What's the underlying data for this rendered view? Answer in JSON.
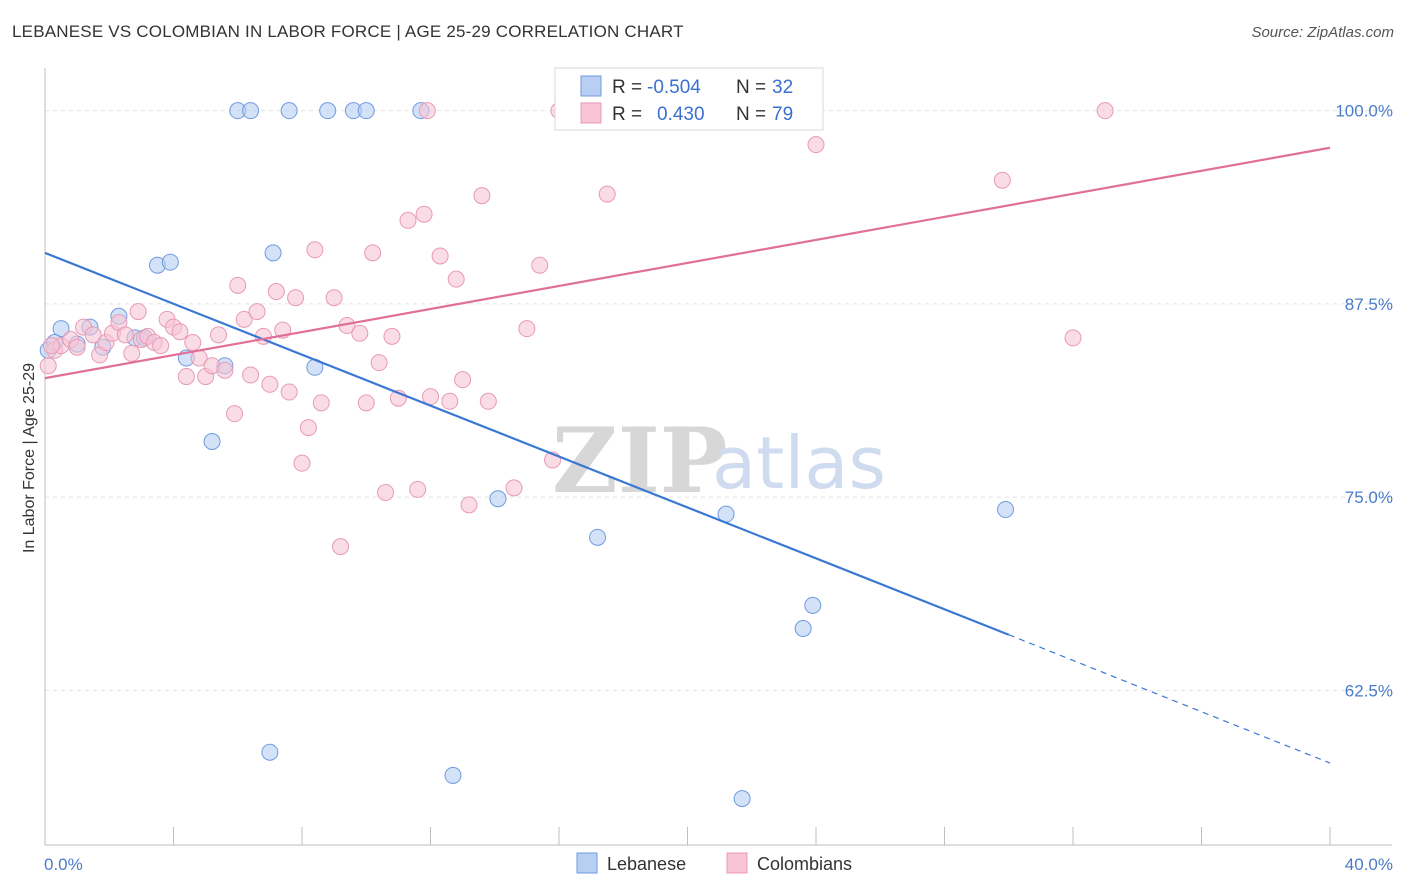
{
  "title": "LEBANESE VS COLOMBIAN IN LABOR FORCE | AGE 25-29 CORRELATION CHART",
  "source": "Source: ZipAtlas.com",
  "watermark": {
    "zip": "ZIP",
    "atlas": "atlas"
  },
  "colors": {
    "lebanese": "#3a78d4",
    "lebanese_fill": "#b8cff3",
    "colombian": "#e0709a",
    "colombian_fill": "#f7c4d5",
    "tick": "#4a7cc9"
  },
  "chart_data": {
    "type": "scatter",
    "title": "LEBANESE VS COLOMBIAN IN LABOR FORCE | AGE 25-29 CORRELATION CHART",
    "xlabel": "",
    "ylabel": "In Labor Force | Age 25-29",
    "xlim": [
      0,
      40
    ],
    "ylim": [
      52.5,
      102.5
    ],
    "x_tick_labels": [
      {
        "value": 0,
        "label": "0.0%"
      },
      {
        "value": 40,
        "label": "40.0%"
      }
    ],
    "y_tick_labels": [
      {
        "value": 100,
        "label": "100.0%"
      },
      {
        "value": 87.5,
        "label": "87.5%"
      },
      {
        "value": 75,
        "label": "75.0%"
      },
      {
        "value": 62.5,
        "label": "62.5%"
      }
    ],
    "grid": true,
    "legend": {
      "placement": "top-center",
      "entries": [
        {
          "r_label": "R =",
          "r_value": "-0.504",
          "n_label": "N =",
          "n_value": "32"
        },
        {
          "r_label": "R =",
          "r_value": "0.430",
          "n_label": "N =",
          "n_value": "79"
        }
      ]
    },
    "series": [
      {
        "name": "Lebanese",
        "trend": {
          "x": [
            0,
            30
          ],
          "y": [
            90.8,
            66.1
          ],
          "dashed_to": [
            40,
            57.8
          ]
        },
        "points": [
          [
            0.1,
            84.5
          ],
          [
            0.5,
            85.9
          ],
          [
            1.0,
            84.9
          ],
          [
            1.4,
            86.0
          ],
          [
            1.8,
            84.7
          ],
          [
            2.3,
            86.7
          ],
          [
            2.8,
            85.3
          ],
          [
            3.1,
            85.3
          ],
          [
            3.5,
            90.0
          ],
          [
            3.9,
            90.2
          ],
          [
            4.4,
            84.0
          ],
          [
            5.2,
            78.6
          ],
          [
            5.6,
            83.5
          ],
          [
            6.0,
            100.0
          ],
          [
            6.4,
            100.0
          ],
          [
            7.0,
            58.5
          ],
          [
            7.1,
            90.8
          ],
          [
            7.6,
            100.0
          ],
          [
            8.4,
            83.4
          ],
          [
            8.8,
            100.0
          ],
          [
            9.6,
            100.0
          ],
          [
            10.0,
            100.0
          ],
          [
            11.7,
            100.0
          ],
          [
            12.7,
            57.0
          ],
          [
            14.1,
            74.9
          ],
          [
            17.2,
            72.4
          ],
          [
            21.2,
            73.9
          ],
          [
            21.7,
            55.5
          ],
          [
            23.6,
            66.5
          ],
          [
            23.9,
            68.0
          ],
          [
            29.9,
            74.2
          ],
          [
            0.3,
            85.0
          ]
        ]
      },
      {
        "name": "Colombians",
        "trend": {
          "x": [
            0,
            40
          ],
          "y": [
            82.7,
            97.6
          ]
        },
        "points": [
          [
            0.1,
            83.5
          ],
          [
            0.3,
            84.5
          ],
          [
            0.5,
            84.8
          ],
          [
            0.8,
            85.2
          ],
          [
            1.0,
            84.7
          ],
          [
            1.2,
            86.0
          ],
          [
            1.5,
            85.5
          ],
          [
            1.7,
            84.2
          ],
          [
            1.9,
            85.0
          ],
          [
            2.1,
            85.6
          ],
          [
            2.3,
            86.3
          ],
          [
            2.5,
            85.5
          ],
          [
            2.7,
            84.3
          ],
          [
            2.9,
            87.0
          ],
          [
            3.0,
            85.2
          ],
          [
            3.2,
            85.4
          ],
          [
            3.4,
            85.0
          ],
          [
            3.6,
            84.8
          ],
          [
            3.8,
            86.5
          ],
          [
            4.0,
            86.0
          ],
          [
            4.2,
            85.7
          ],
          [
            4.4,
            82.8
          ],
          [
            4.6,
            85.0
          ],
          [
            4.8,
            84.0
          ],
          [
            5.0,
            82.8
          ],
          [
            5.2,
            83.5
          ],
          [
            5.4,
            85.5
          ],
          [
            5.6,
            83.2
          ],
          [
            5.9,
            80.4
          ],
          [
            6.0,
            88.7
          ],
          [
            6.2,
            86.5
          ],
          [
            6.4,
            82.9
          ],
          [
            6.6,
            87.0
          ],
          [
            6.8,
            85.4
          ],
          [
            7.0,
            82.3
          ],
          [
            7.2,
            88.3
          ],
          [
            7.4,
            85.8
          ],
          [
            7.6,
            81.8
          ],
          [
            7.8,
            87.9
          ],
          [
            8.0,
            77.2
          ],
          [
            8.2,
            79.5
          ],
          [
            8.4,
            91.0
          ],
          [
            8.6,
            81.1
          ],
          [
            9.0,
            87.9
          ],
          [
            9.2,
            71.8
          ],
          [
            9.4,
            86.1
          ],
          [
            9.8,
            85.6
          ],
          [
            10.0,
            81.1
          ],
          [
            10.2,
            90.8
          ],
          [
            10.4,
            83.7
          ],
          [
            10.6,
            75.3
          ],
          [
            10.8,
            85.4
          ],
          [
            11.0,
            81.4
          ],
          [
            11.3,
            92.9
          ],
          [
            11.6,
            75.5
          ],
          [
            11.8,
            93.3
          ],
          [
            11.9,
            100.0
          ],
          [
            12.0,
            81.5
          ],
          [
            12.3,
            90.6
          ],
          [
            12.6,
            81.2
          ],
          [
            12.8,
            89.1
          ],
          [
            13.0,
            82.6
          ],
          [
            13.2,
            74.5
          ],
          [
            13.6,
            94.5
          ],
          [
            13.8,
            81.2
          ],
          [
            14.6,
            75.6
          ],
          [
            15.0,
            85.9
          ],
          [
            15.4,
            90.0
          ],
          [
            15.8,
            77.4
          ],
          [
            16.0,
            100.0
          ],
          [
            17.5,
            94.6
          ],
          [
            18.0,
            100.0
          ],
          [
            22.0,
            100.0
          ],
          [
            24.0,
            97.8
          ],
          [
            29.8,
            95.5
          ],
          [
            32.0,
            85.3
          ],
          [
            33.0,
            100.0
          ],
          [
            23.0,
            100.0
          ],
          [
            0.2,
            84.8
          ]
        ]
      }
    ]
  }
}
